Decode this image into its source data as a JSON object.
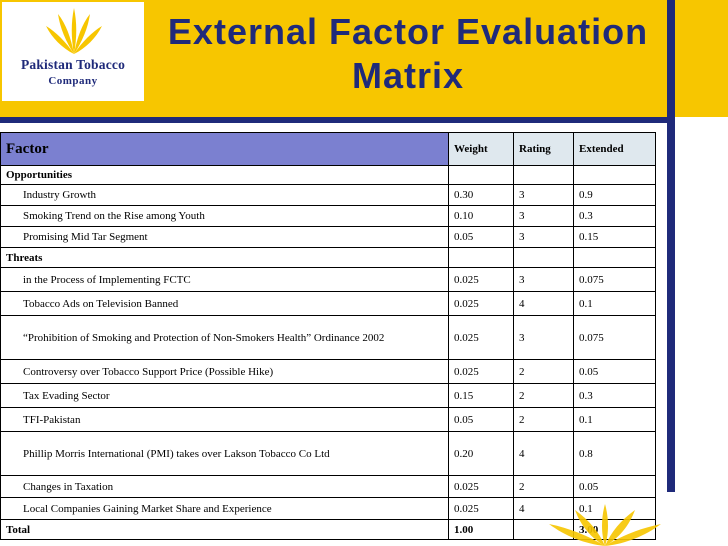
{
  "header": {
    "title_line1": "External Factor Evaluation",
    "title_line2": "Matrix",
    "logo_line1": "Pakistan Tobacco",
    "logo_line2": "Company",
    "accent_color": "#f7c600",
    "brand_color": "#1f2a7a"
  },
  "table": {
    "columns": [
      "Factor",
      "Weight",
      "Rating",
      "Extended"
    ],
    "sections": {
      "opportunities": "Opportunities",
      "threats": "Threats"
    },
    "rows": [
      {
        "factor": "Industry Growth",
        "weight": "0.30",
        "rating": "3",
        "extended": "0.9"
      },
      {
        "factor": "Smoking Trend on the Rise among Youth",
        "weight": "0.10",
        "rating": "3",
        "extended": "0.3"
      },
      {
        "factor": "Promising Mid Tar Segment",
        "weight": "0.05",
        "rating": "3",
        "extended": "0.15"
      },
      {
        "factor": "in the Process of Implementing FCTC",
        "weight": "0.025",
        "rating": "3",
        "extended": "0.075"
      },
      {
        "factor": "Tobacco Ads on Television  Banned",
        "weight": "0.025",
        "rating": "4",
        "extended": "0.1"
      },
      {
        "factor": "“Prohibition of Smoking and Protection of Non-Smokers Health” Ordinance 2002",
        "weight": "0.025",
        "rating": "3",
        "extended": "0.075"
      },
      {
        "factor": "Controversy over Tobacco  Support Price  (Possible  Hike)",
        "weight": "0.025",
        "rating": "2",
        "extended": "0.05"
      },
      {
        "factor": "Tax Evading Sector",
        "weight": "0.15",
        "rating": "2",
        "extended": "0.3"
      },
      {
        "factor": "TFI-Pakistan",
        "weight": "0.05",
        "rating": "2",
        "extended": "0.1"
      },
      {
        "factor": "Phillip Morris International (PMI) takes over Lakson Tobacco Co Ltd",
        "weight": "0.20",
        "rating": "4",
        "extended": "0.8"
      },
      {
        "factor": "Changes in Taxation",
        "weight": "0.025",
        "rating": "2",
        "extended": "0.05"
      },
      {
        "factor": "Local Companies Gaining Market Share and Experience",
        "weight": "0.025",
        "rating": "4",
        "extended": "0.1"
      }
    ],
    "total": {
      "label": "Total",
      "weight": "1.00",
      "rating": "",
      "extended": "3.00"
    }
  }
}
